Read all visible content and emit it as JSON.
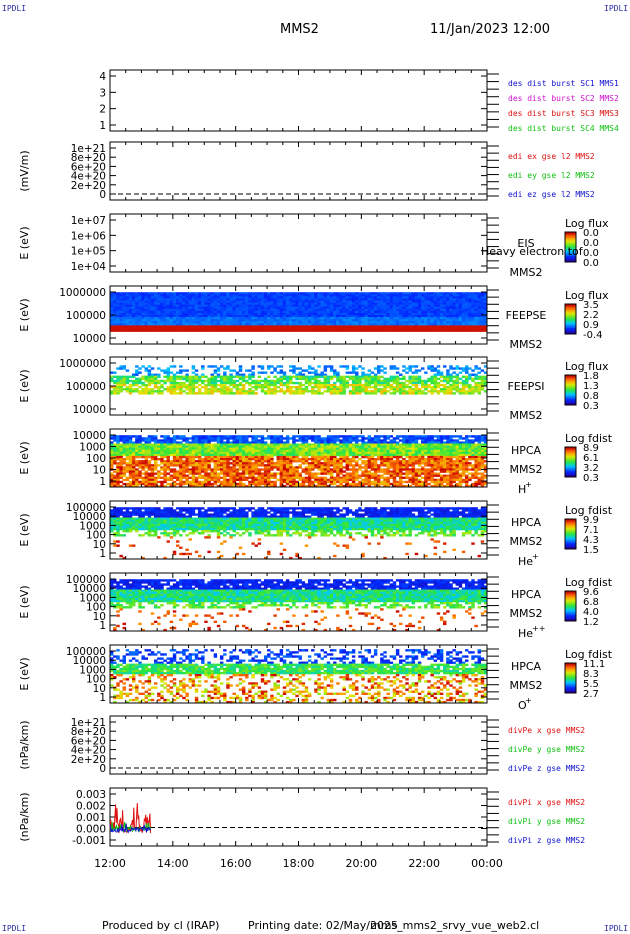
{
  "header": {
    "corner_label": "IPDLI",
    "spacecraft": "MMS2",
    "datetime": "11/Jan/2023 12:00"
  },
  "footer": {
    "produced_by": "Produced by cl (IRAP)",
    "printing_date": "Printing date: 02/May/2025",
    "script_name": "mms_mms2_srvy_vue_web2.cl"
  },
  "time_axis": {
    "ticks": [
      "12:00",
      "14:00",
      "16:00",
      "18:00",
      "20:00",
      "22:00",
      "00:00"
    ],
    "start_hour": 12,
    "end_hour": 24
  },
  "panels": [
    {
      "id": "des-dist-burst",
      "type": "line",
      "ylabel": "",
      "yticks": [
        "4",
        "3",
        "2",
        "1"
      ],
      "ylim": [
        0.5,
        4.5
      ],
      "legend": [
        {
          "text": "des dist burst SC1 MMS1",
          "color": "#1010d0"
        },
        {
          "text": "des dist burst SC2 MMS2",
          "color": "#d010d0"
        },
        {
          "text": "des dist burst SC3 MMS3",
          "color": "#e01010"
        },
        {
          "text": "des dist burst SC4 MMS4",
          "color": "#10c010"
        }
      ],
      "series": []
    },
    {
      "id": "edi-e-gse",
      "type": "line",
      "ylabel": "(mV/m)",
      "yticks": [
        "1e+21",
        "8e+20",
        "6e+20",
        "4e+20",
        "2e+20",
        "0"
      ],
      "ylim": [
        0,
        1e+21
      ],
      "zero_line": true,
      "legend": [
        {
          "text": "edi ex gse l2 MMS2",
          "color": "#e01010"
        },
        {
          "text": "edi ey gse l2 MMS2",
          "color": "#10c010"
        },
        {
          "text": "edi ez gse l2 MMS2",
          "color": "#1010d0"
        }
      ],
      "series": []
    },
    {
      "id": "eis",
      "type": "heatmap",
      "ylabel": "E (eV)",
      "yticks": [
        "1e+07",
        "1e+06",
        "1e+05",
        "1e+04"
      ],
      "ylim": [
        10000.0,
        10000000.0
      ],
      "side_labels": [
        "EIS",
        "MMS2"
      ],
      "overlay_text": "Heavy electron tof",
      "colorbar": {
        "title": "Log flux",
        "ticks": [
          "0.0",
          "0.0",
          "0.0",
          "0.0"
        ]
      },
      "data": []
    },
    {
      "id": "feeps-e",
      "type": "heatmap",
      "ylabel": "E (eV)",
      "yticks": [
        "1000000",
        "100000",
        "10000"
      ],
      "ylim": [
        10000.0,
        1000000.0
      ],
      "side_labels": [
        "FEEPSE",
        "MMS2"
      ],
      "colorbar": {
        "title": "Log flux",
        "ticks": [
          "3.5",
          "2.2",
          "0.9",
          "-0.4"
        ]
      },
      "data": {
        "low_energy_band": "high",
        "upper_band": "low"
      }
    },
    {
      "id": "feeps-i",
      "type": "heatmap",
      "ylabel": "E (eV)",
      "yticks": [
        "1000000",
        "100000",
        "10000"
      ],
      "ylim": [
        10000.0,
        1000000.0
      ],
      "side_labels": [
        "FEEPSI",
        "MMS2"
      ],
      "colorbar": {
        "title": "Log flux",
        "ticks": [
          "1.8",
          "1.3",
          "0.8",
          "0.3"
        ]
      },
      "data": {
        "pattern": "mid-green band, sparse blue upper"
      }
    },
    {
      "id": "hpca-h",
      "type": "heatmap",
      "ylabel": "E (eV)",
      "yticks": [
        "10000",
        "1000",
        "100",
        "10",
        "1"
      ],
      "ylim": [
        1,
        10000.0
      ],
      "side_labels": [
        "HPCA",
        "MMS2"
      ],
      "species": "H",
      "species_sup": "+",
      "colorbar": {
        "title": "Log fdist",
        "ticks": [
          "8.9",
          "6.1",
          "3.2",
          "0.3"
        ]
      },
      "data": {
        "pattern": "red low, blue high"
      }
    },
    {
      "id": "hpca-he",
      "type": "heatmap",
      "ylabel": "E (eV)",
      "yticks": [
        "100000",
        "10000",
        "1000",
        "100",
        "10",
        "1"
      ],
      "ylim": [
        1,
        100000.0
      ],
      "side_labels": [
        "HPCA",
        "MMS2"
      ],
      "species": "He",
      "species_sup": "+",
      "colorbar": {
        "title": "Log fdist",
        "ticks": [
          "9.9",
          "7.1",
          "4.3",
          "1.5"
        ]
      },
      "data": {
        "pattern": "blue high, green mid, sparse red low"
      }
    },
    {
      "id": "hpca-he2",
      "type": "heatmap",
      "ylabel": "E (eV)",
      "yticks": [
        "100000",
        "10000",
        "1000",
        "100",
        "10",
        "1"
      ],
      "ylim": [
        1,
        100000.0
      ],
      "side_labels": [
        "HPCA",
        "MMS2"
      ],
      "species": "He",
      "species_sup": "++",
      "colorbar": {
        "title": "Log fdist",
        "ticks": [
          "9.6",
          "6.8",
          "4.0",
          "1.2"
        ]
      },
      "data": {
        "pattern": "blue high, green mid, sparse red low"
      }
    },
    {
      "id": "hpca-o",
      "type": "heatmap",
      "ylabel": "E (eV)",
      "yticks": [
        "100000",
        "10000",
        "1000",
        "100",
        "10",
        "1"
      ],
      "ylim": [
        1,
        100000.0
      ],
      "side_labels": [
        "HPCA",
        "MMS2"
      ],
      "species": "O",
      "species_sup": "+",
      "colorbar": {
        "title": "Log fdist",
        "ticks": [
          "11.1",
          "8.3",
          "5.5",
          "2.7"
        ]
      },
      "data": {
        "pattern": "blue sparse high, green mid, red sparse low"
      }
    },
    {
      "id": "divpe",
      "type": "line",
      "ylabel": "(nPa/km)",
      "yticks": [
        "1e+21",
        "8e+20",
        "6e+20",
        "4e+20",
        "2e+20",
        "0"
      ],
      "ylim": [
        0,
        1e+21
      ],
      "zero_line": true,
      "legend": [
        {
          "text": "divPe x gse MMS2",
          "color": "#e01010"
        },
        {
          "text": "divPe y gse MMS2",
          "color": "#10c010"
        },
        {
          "text": "divPe z gse MMS2",
          "color": "#1010d0"
        }
      ],
      "series": []
    },
    {
      "id": "divpi",
      "type": "line",
      "ylabel": "(nPa/km)",
      "yticks": [
        "0.003",
        "0.002",
        "0.001",
        "0.000",
        "-0.001"
      ],
      "ylim": [
        -0.0015,
        0.0032
      ],
      "zero_line": true,
      "legend": [
        {
          "text": "divPi x gse MMS2",
          "color": "#e01010"
        },
        {
          "text": "divPi y gse MMS2",
          "color": "#10c010"
        },
        {
          "text": "divPi z gse MMS2",
          "color": "#1010d0"
        }
      ],
      "series": [
        {
          "name": "divPi x gse MMS2",
          "color": "#e01010",
          "t_start": 12.0,
          "t_end": 13.3,
          "amp_max": 0.003,
          "amp_min": -0.0005
        },
        {
          "name": "divPi y gse MMS2",
          "color": "#10c010",
          "t_start": 12.0,
          "t_end": 13.3,
          "amp_max": 0.0006,
          "amp_min": -0.0003
        },
        {
          "name": "divPi z gse MMS2",
          "color": "#1010d0",
          "t_start": 12.0,
          "t_end": 13.3,
          "amp_max": 0.0004,
          "amp_min": -0.0004
        }
      ]
    }
  ]
}
